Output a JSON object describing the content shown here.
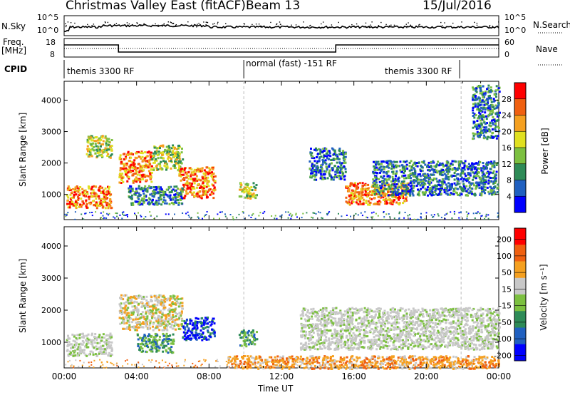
{
  "header": {
    "title": "Christmas Valley East (fitACF)",
    "beam": "Beam 13",
    "date": "15/Jul/2016"
  },
  "noise_panel": {
    "left_label": "N.Sky",
    "right_label": "N.Search",
    "left_ticks": [
      "10^5",
      "10^0"
    ],
    "right_ticks": [
      "10^5",
      "10^0"
    ]
  },
  "freq_panel": {
    "left_label_1": "Freq.",
    "left_label_2": "[MHz]",
    "right_label": "Nave",
    "left_ticks": [
      "18",
      "8"
    ],
    "right_ticks": [
      "60",
      "0"
    ]
  },
  "cpid": {
    "label": "CPID",
    "segments": [
      {
        "text": "themis 3300 RF",
        "start_hour": 0
      },
      {
        "text": "normal (fast) -151 RF",
        "start_hour": 10
      },
      {
        "text": "themis 3300 RF",
        "start_hour": 22
      }
    ]
  },
  "time_axis": {
    "label": "Time UT",
    "ticks": [
      "00:00",
      "04:00",
      "08:00",
      "12:00",
      "16:00",
      "20:00",
      "00:00"
    ]
  },
  "chart_data": [
    {
      "type": "heatmap",
      "title": "Power",
      "ylabel": "Slant Range [km]",
      "xlabel": "",
      "xlim_hours": [
        0,
        24
      ],
      "ylim": [
        200,
        4600
      ],
      "yticks": [
        "1000",
        "2000",
        "3000",
        "4000"
      ],
      "colorbar": {
        "label": "Power [dB]",
        "ticks": [
          "4",
          "8",
          "12",
          "16",
          "20",
          "24",
          "28"
        ],
        "colors": [
          "#0000ff",
          "#2060c0",
          "#2e8b57",
          "#7cc040",
          "#e0e020",
          "#f5a020",
          "#f06010",
          "#ff0000"
        ]
      },
      "echo_regions": [
        {
          "t0": 0.1,
          "t1": 2.6,
          "r0": 600,
          "r1": 1300,
          "level": "high"
        },
        {
          "t0": 1.2,
          "t1": 2.6,
          "r0": 2200,
          "r1": 2900,
          "level": "mid"
        },
        {
          "t0": 3.0,
          "t1": 4.8,
          "r0": 1400,
          "r1": 2400,
          "level": "high"
        },
        {
          "t0": 4.8,
          "t1": 6.5,
          "r0": 1800,
          "r1": 2600,
          "level": "mid"
        },
        {
          "t0": 6.3,
          "t1": 8.3,
          "r0": 900,
          "r1": 1900,
          "level": "high"
        },
        {
          "t0": 3.5,
          "t1": 6.5,
          "r0": 700,
          "r1": 1300,
          "level": "low"
        },
        {
          "t0": 9.6,
          "t1": 10.6,
          "r0": 900,
          "r1": 1400,
          "level": "mid"
        },
        {
          "t0": 13.5,
          "t1": 15.5,
          "r0": 1500,
          "r1": 2500,
          "level": "low"
        },
        {
          "t0": 15.5,
          "t1": 19.0,
          "r0": 700,
          "r1": 1400,
          "level": "high"
        },
        {
          "t0": 17.0,
          "t1": 23.9,
          "r0": 1000,
          "r1": 2100,
          "level": "low"
        },
        {
          "t0": 22.5,
          "t1": 24.0,
          "r0": 2800,
          "r1": 4500,
          "level": "low"
        }
      ]
    },
    {
      "type": "heatmap",
      "title": "Velocity",
      "ylabel": "Slant Range [km]",
      "xlabel": "Time UT",
      "xlim_hours": [
        0,
        24
      ],
      "ylim": [
        200,
        4600
      ],
      "yticks": [
        "1000",
        "2000",
        "3000",
        "4000"
      ],
      "colorbar": {
        "label": "Velocity [m s⁻¹]",
        "ticks": [
          "200",
          "100",
          "50",
          "15",
          "-15",
          "-50",
          "-100",
          "-200"
        ],
        "colors": [
          "#0000ff",
          "#2060c0",
          "#2e8b57",
          "#7cc040",
          "#c8c8c8",
          "#f5a020",
          "#f06010",
          "#ff0000"
        ]
      },
      "echo_regions": [
        {
          "t0": 0.1,
          "t1": 2.6,
          "r0": 600,
          "r1": 1300,
          "level": "zero"
        },
        {
          "t0": 3.0,
          "t1": 6.5,
          "r0": 1400,
          "r1": 2500,
          "level": "zero_orange"
        },
        {
          "t0": 4.0,
          "t1": 6.0,
          "r0": 700,
          "r1": 1300,
          "level": "green"
        },
        {
          "t0": 6.5,
          "t1": 8.3,
          "r0": 1100,
          "r1": 1800,
          "level": "blue"
        },
        {
          "t0": 9.6,
          "t1": 10.6,
          "r0": 900,
          "r1": 1400,
          "level": "green"
        },
        {
          "t0": 13.0,
          "t1": 24.0,
          "r0": 800,
          "r1": 2100,
          "level": "zero"
        },
        {
          "t0": 9.0,
          "t1": 24.0,
          "r0": 200,
          "r1": 600,
          "level": "orange"
        }
      ]
    }
  ]
}
